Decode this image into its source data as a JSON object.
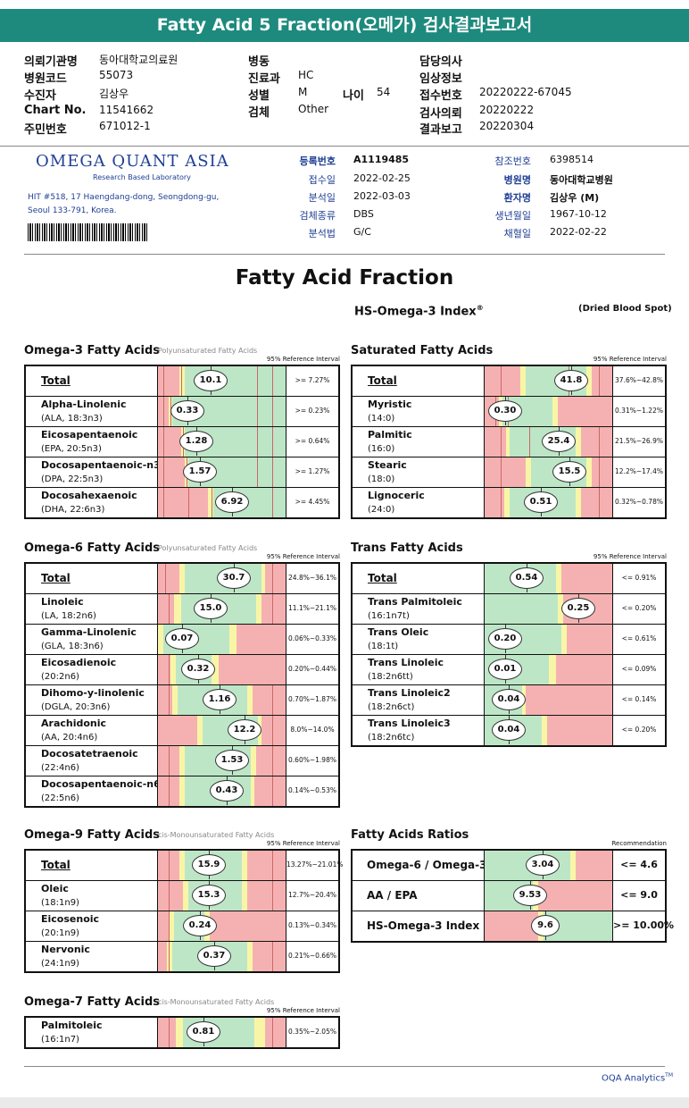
{
  "header": {
    "title": "Fatty Acid 5 Fraction(오메가) 검사결과보고서",
    "fields": [
      {
        "label": "의뢰기관명",
        "value": "동아대학교의료원"
      },
      {
        "label": "병원코드",
        "value": "55073"
      },
      {
        "label": "수진자",
        "value": "김상우"
      },
      {
        "label": "Chart No.",
        "value": "11541662"
      },
      {
        "label": "주민번호",
        "value": "671012-1"
      },
      {
        "label": "병동",
        "value": ""
      },
      {
        "label": "진료과",
        "value": "HC"
      },
      {
        "label": "성별",
        "value": "M"
      },
      {
        "label": "검체",
        "value": "Other"
      },
      {
        "label": "나이",
        "value": "54"
      },
      {
        "label": "담당의사",
        "value": ""
      },
      {
        "label": "임상정보",
        "value": ""
      },
      {
        "label": "접수번호",
        "value": "20220222-67045"
      },
      {
        "label": "검사의뢰",
        "value": "20220222"
      },
      {
        "label": "결과보고",
        "value": "20220304"
      }
    ]
  },
  "lab": {
    "logo": "OMEGA QUANT ASIA",
    "logo_sub": "Research Based Laboratory",
    "address_line1": "HIT #518, 17 Haengdang-dong, Seongdong-gu,",
    "address_line2": "Seoul 133-791, Korea.",
    "meta": [
      {
        "label": "등록번호",
        "value": "A1119485"
      },
      {
        "label": "접수일",
        "value": "2022-02-25"
      },
      {
        "label": "분석일",
        "value": "2022-03-03"
      },
      {
        "label": "검체종류",
        "value": "DBS"
      },
      {
        "label": "분석법",
        "value": "G/C"
      },
      {
        "label": "참조번호",
        "value": "6398514"
      },
      {
        "label": "병원명",
        "value": "동아대학교병원"
      },
      {
        "label": "환자명",
        "value": "김상우 (M)"
      },
      {
        "label": "생년월일",
        "value": "1967-10-12"
      },
      {
        "label": "채혈일",
        "value": "2022-02-22"
      }
    ]
  },
  "report": {
    "title": "Fatty Acid Fraction",
    "index_label": "HS-Omega-3 Index",
    "index_sup": "®",
    "sample_type": "(Dried Blood Spot)"
  },
  "colors": {
    "red": "#f5b1b1",
    "green": "#bde6c7",
    "yellow": "#f8f6a6",
    "header": "#1d8a7d",
    "accent": "#1f3f94"
  },
  "sections": [
    {
      "title": "Omega-3 Fatty Acids",
      "subtitle": "Polyunsaturated Fatty Acids",
      "ref_header": "95% Reference Interval",
      "rows": [
        {
          "total": true,
          "name": "Total",
          "value": "10.1",
          "ref": ">= 7.27%"
        },
        {
          "name": "Alpha-Linolenic",
          "abbr": "(ALA, 18:3n3)",
          "value": "0.33",
          "ref": ">= 0.23%"
        },
        {
          "name": "Eicosapentaenoic",
          "abbr": "(EPA, 20:5n3)",
          "value": "1.28",
          "ref": ">= 0.64%"
        },
        {
          "name": "Docosapentaenoic-n3",
          "abbr": "(DPA, 22:5n3)",
          "value": "1.57",
          "ref": ">= 1.27%"
        },
        {
          "name": "Docosahexaenoic",
          "abbr": "(DHA, 22:6n3)",
          "value": "6.92",
          "ref": ">= 4.45%"
        }
      ]
    },
    {
      "title": "Saturated Fatty Acids",
      "ref_header": "95% Reference Interval",
      "rows": [
        {
          "total": true,
          "name": "Total",
          "value": "41.8",
          "ref": "37.6%~42.8%"
        },
        {
          "name": "Myristic",
          "abbr": "(14:0)",
          "value": "0.30",
          "ref": "0.31%~1.22%"
        },
        {
          "name": "Palmitic",
          "abbr": "(16:0)",
          "value": "25.4",
          "ref": "21.5%~26.9%"
        },
        {
          "name": "Stearic",
          "abbr": "(18:0)",
          "value": "15.5",
          "ref": "12.2%~17.4%"
        },
        {
          "name": "Lignoceric",
          "abbr": "(24:0)",
          "value": "0.51",
          "ref": "0.32%~0.78%"
        }
      ]
    },
    {
      "title": "Omega-6 Fatty Acids",
      "subtitle": "Polyunsaturated Fatty Acids",
      "ref_header": "95% Reference Interval",
      "rows": [
        {
          "total": true,
          "name": "Total",
          "value": "30.7",
          "ref": "24.8%~36.1%"
        },
        {
          "name": "Linoleic",
          "abbr": "(LA, 18:2n6)",
          "value": "15.0",
          "ref": "11.1%~21.1%"
        },
        {
          "name": "Gamma-Linolenic",
          "abbr": "(GLA, 18:3n6)",
          "value": "0.07",
          "ref": "0.06%~0.33%"
        },
        {
          "name": "Eicosadienoic",
          "abbr": "(20:2n6)",
          "value": "0.32",
          "ref": "0.20%~0.44%"
        },
        {
          "name": "Dihomo-y-linolenic",
          "abbr": "(DGLA, 20:3n6)",
          "value": "1.16",
          "ref": "0.70%~1.87%"
        },
        {
          "name": "Arachidonic",
          "abbr": "(AA, 20:4n6)",
          "value": "12.2",
          "ref": "8.0%~14.0%"
        },
        {
          "name": "Docosatetraenoic",
          "abbr": "(22:4n6)",
          "value": "1.53",
          "ref": "0.60%~1.98%"
        },
        {
          "name": "Docosapentaenoic-n6",
          "abbr": "(22:5n6)",
          "value": "0.43",
          "ref": "0.14%~0.53%"
        }
      ]
    },
    {
      "title": "Trans Fatty Acids",
      "ref_header": "95% Reference Interval",
      "rows": [
        {
          "total": true,
          "name": "Total",
          "value": "0.54",
          "ref": "<= 0.91%"
        },
        {
          "name": "Trans Palmitoleic",
          "abbr": "(16:1n7t)",
          "value": "0.25",
          "ref": "<= 0.20%"
        },
        {
          "name": "Trans Oleic",
          "abbr": "(18:1t)",
          "value": "0.20",
          "ref": "<= 0.61%"
        },
        {
          "name": "Trans Linoleic",
          "abbr": "(18:2n6tt)",
          "value": "0.01",
          "ref": "<= 0.09%"
        },
        {
          "name": "Trans Linoleic2",
          "abbr": "(18:2n6ct)",
          "value": "0.04",
          "ref": "<= 0.14%"
        },
        {
          "name": "Trans Linoleic3",
          "abbr": "(18:2n6tc)",
          "value": "0.04",
          "ref": "<= 0.20%"
        }
      ]
    },
    {
      "title": "Omega-9 Fatty Acids",
      "subtitle": "cis-Monounsaturated Fatty Acids",
      "ref_header": "95% Reference Interval",
      "rows": [
        {
          "total": true,
          "name": "Total",
          "value": "15.9",
          "ref": "13.27%~21.01%"
        },
        {
          "name": "Oleic",
          "abbr": "(18:1n9)",
          "value": "15.3",
          "ref": "12.7%~20.4%"
        },
        {
          "name": "Eicosenoic",
          "abbr": "(20:1n9)",
          "value": "0.24",
          "ref": "0.13%~0.34%"
        },
        {
          "name": "Nervonic",
          "abbr": "(24:1n9)",
          "value": "0.37",
          "ref": "0.21%~0.66%"
        }
      ]
    },
    {
      "title": "Fatty Acids Ratios",
      "ref_header": "Recommendation",
      "rows": [
        {
          "ratio": true,
          "name": "Omega-6 / Omega-3",
          "value": "3.04",
          "ref": "<= 4.6"
        },
        {
          "ratio": true,
          "name": "AA / EPA",
          "value": "9.53",
          "ref": "<= 9.0"
        },
        {
          "ratio": true,
          "name": "HS-Omega-3 Index",
          "value": "9.6",
          "ref": ">= 10.00%"
        }
      ]
    },
    {
      "title": "Omega-7 Fatty Acids",
      "subtitle": "cis-Monounsaturated Fatty Acids",
      "ref_header": "95% Reference Interval",
      "rows": [
        {
          "name": "Palmitoleic",
          "abbr": "(16:1n7)",
          "value": "0.81",
          "ref": "0.35%~2.05%"
        }
      ]
    }
  ],
  "footer": {
    "brand": "OQA Analytics",
    "tm": "TM"
  }
}
